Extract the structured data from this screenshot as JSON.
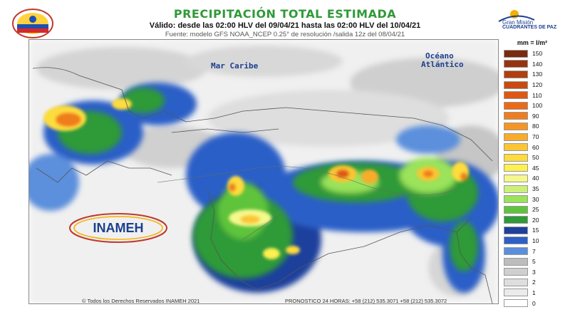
{
  "header": {
    "title": "PRECIPITACIÓN TOTAL ESTIMADA",
    "validity": "Válido: desde las 02:00 HLV del 09/04/21 hasta las 02:00 HLV del 10/04/21",
    "source": "Fuente: modelo GFS NOAA_NCEP 0.25° de resolución /salida 12z del 08/04/21"
  },
  "logos": {
    "partner_line1": "Gran Misión",
    "partner_line2": "CUADRANTES DE PAZ",
    "institute_name": "INAMEH"
  },
  "map": {
    "sea_label": "Mar Caribe",
    "ocean_label_line1": "Océano",
    "ocean_label_line2": "Atlántico"
  },
  "legend": {
    "title": "mm = l/m²",
    "items": [
      {
        "value": "150",
        "color": "#7a2a10"
      },
      {
        "value": "140",
        "color": "#96340f"
      },
      {
        "value": "130",
        "color": "#b0400e"
      },
      {
        "value": "120",
        "color": "#c84b10"
      },
      {
        "value": "110",
        "color": "#dd5812"
      },
      {
        "value": "100",
        "color": "#ec6a17"
      },
      {
        "value": "90",
        "color": "#f07d1d"
      },
      {
        "value": "80",
        "color": "#f59526"
      },
      {
        "value": "70",
        "color": "#f8ac2c"
      },
      {
        "value": "60",
        "color": "#fbc533"
      },
      {
        "value": "50",
        "color": "#fddc3c"
      },
      {
        "value": "45",
        "color": "#fdf050"
      },
      {
        "value": "40",
        "color": "#f5f88a"
      },
      {
        "value": "35",
        "color": "#cdf07a"
      },
      {
        "value": "30",
        "color": "#9ae35a"
      },
      {
        "value": "25",
        "color": "#5ec43b"
      },
      {
        "value": "20",
        "color": "#2f9a38"
      },
      {
        "value": "15",
        "color": "#1f3f9c"
      },
      {
        "value": "10",
        "color": "#2c5fc7"
      },
      {
        "value": "7",
        "color": "#5b8fdc"
      },
      {
        "value": "5",
        "color": "#bdbdbd"
      },
      {
        "value": "3",
        "color": "#cfcfcf"
      },
      {
        "value": "2",
        "color": "#dedede"
      },
      {
        "value": "1",
        "color": "#ebebeb"
      },
      {
        "value": "0",
        "color": "#ffffff"
      }
    ]
  },
  "footer": {
    "copyright": "© Todos los Derechos Reservados INAMEH 2021",
    "contact": "PRONOSTICO 24 HORAS: +58 (212) 535.3071 +58 (212) 535.3072"
  }
}
